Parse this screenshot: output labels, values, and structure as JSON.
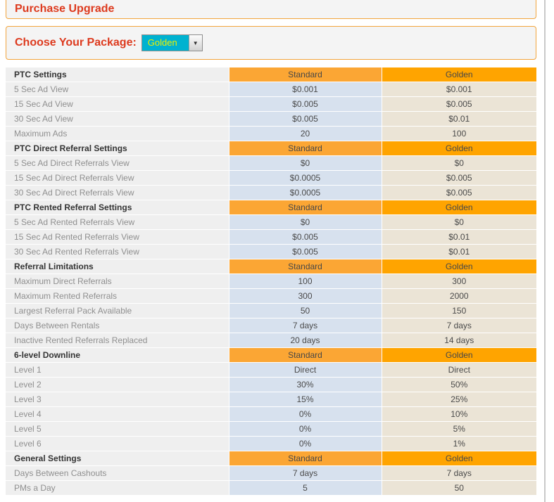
{
  "header": {
    "title": "Purchase Upgrade"
  },
  "package": {
    "label": "Choose Your Package:",
    "selected": "Golden"
  },
  "icons": {
    "chevron_down": "▼"
  },
  "colors": {
    "accent_red": "#dd3a1e",
    "panel_border_orange": "#f2a43c",
    "panel_bg": "#f4f4f4",
    "select_bg_cyan": "#00b2d0",
    "select_text_yellow": "#edf000",
    "standard_header_orange": "#fba634",
    "golden_header_orange": "#ffa400",
    "standard_cell_blue": "#d7e1ee",
    "golden_cell_beige": "#ebe4d6",
    "label_col_gray": "#efefef"
  },
  "table": {
    "columns": [
      "Standard",
      "Golden"
    ],
    "sections": [
      {
        "name": "PTC Settings",
        "rows": [
          {
            "label": "5 Sec Ad View",
            "standard": "$0.001",
            "golden": "$0.001"
          },
          {
            "label": "15 Sec Ad View",
            "standard": "$0.005",
            "golden": "$0.005"
          },
          {
            "label": "30 Sec Ad View",
            "standard": "$0.005",
            "golden": "$0.01"
          },
          {
            "label": "Maximum Ads",
            "standard": "20",
            "golden": "100"
          }
        ]
      },
      {
        "name": "PTC Direct Referral Settings",
        "rows": [
          {
            "label": "5 Sec Ad Direct Referrals View",
            "standard": "$0",
            "golden": "$0"
          },
          {
            "label": "15 Sec Ad Direct Referrals View",
            "standard": "$0.0005",
            "golden": "$0.005"
          },
          {
            "label": "30 Sec Ad Direct Referrals View",
            "standard": "$0.0005",
            "golden": "$0.005"
          }
        ]
      },
      {
        "name": "PTC Rented Referral Settings",
        "rows": [
          {
            "label": "5 Sec Ad Rented Referrals View",
            "standard": "$0",
            "golden": "$0"
          },
          {
            "label": "15 Sec Ad Rented Referrals View",
            "standard": "$0.005",
            "golden": "$0.01"
          },
          {
            "label": "30 Sec Ad Rented Referrals View",
            "standard": "$0.005",
            "golden": "$0.01"
          }
        ]
      },
      {
        "name": "Referral Limitations",
        "rows": [
          {
            "label": "Maximum Direct Referrals",
            "standard": "100",
            "golden": "300"
          },
          {
            "label": "Maximum Rented Referrals",
            "standard": "300",
            "golden": "2000"
          },
          {
            "label": "Largest Referral Pack Available",
            "standard": "50",
            "golden": "150"
          },
          {
            "label": "Days Between Rentals",
            "standard": "7 days",
            "golden": "7 days"
          },
          {
            "label": "Inactive Rented Referrals Replaced",
            "standard": "20 days",
            "golden": "14 days"
          }
        ]
      },
      {
        "name": "6-level Downline",
        "rows": [
          {
            "label": "Level 1",
            "standard": "Direct",
            "golden": "Direct"
          },
          {
            "label": "Level 2",
            "standard": "30%",
            "golden": "50%"
          },
          {
            "label": "Level 3",
            "standard": "15%",
            "golden": "25%"
          },
          {
            "label": "Level 4",
            "standard": "0%",
            "golden": "10%"
          },
          {
            "label": "Level 5",
            "standard": "0%",
            "golden": "5%"
          },
          {
            "label": "Level 6",
            "standard": "0%",
            "golden": "1%"
          }
        ]
      },
      {
        "name": "General Settings",
        "rows": [
          {
            "label": "Days Between Cashouts",
            "standard": "7 days",
            "golden": "7 days"
          },
          {
            "label": "PMs a Day",
            "standard": "5",
            "golden": "50"
          }
        ]
      }
    ]
  }
}
